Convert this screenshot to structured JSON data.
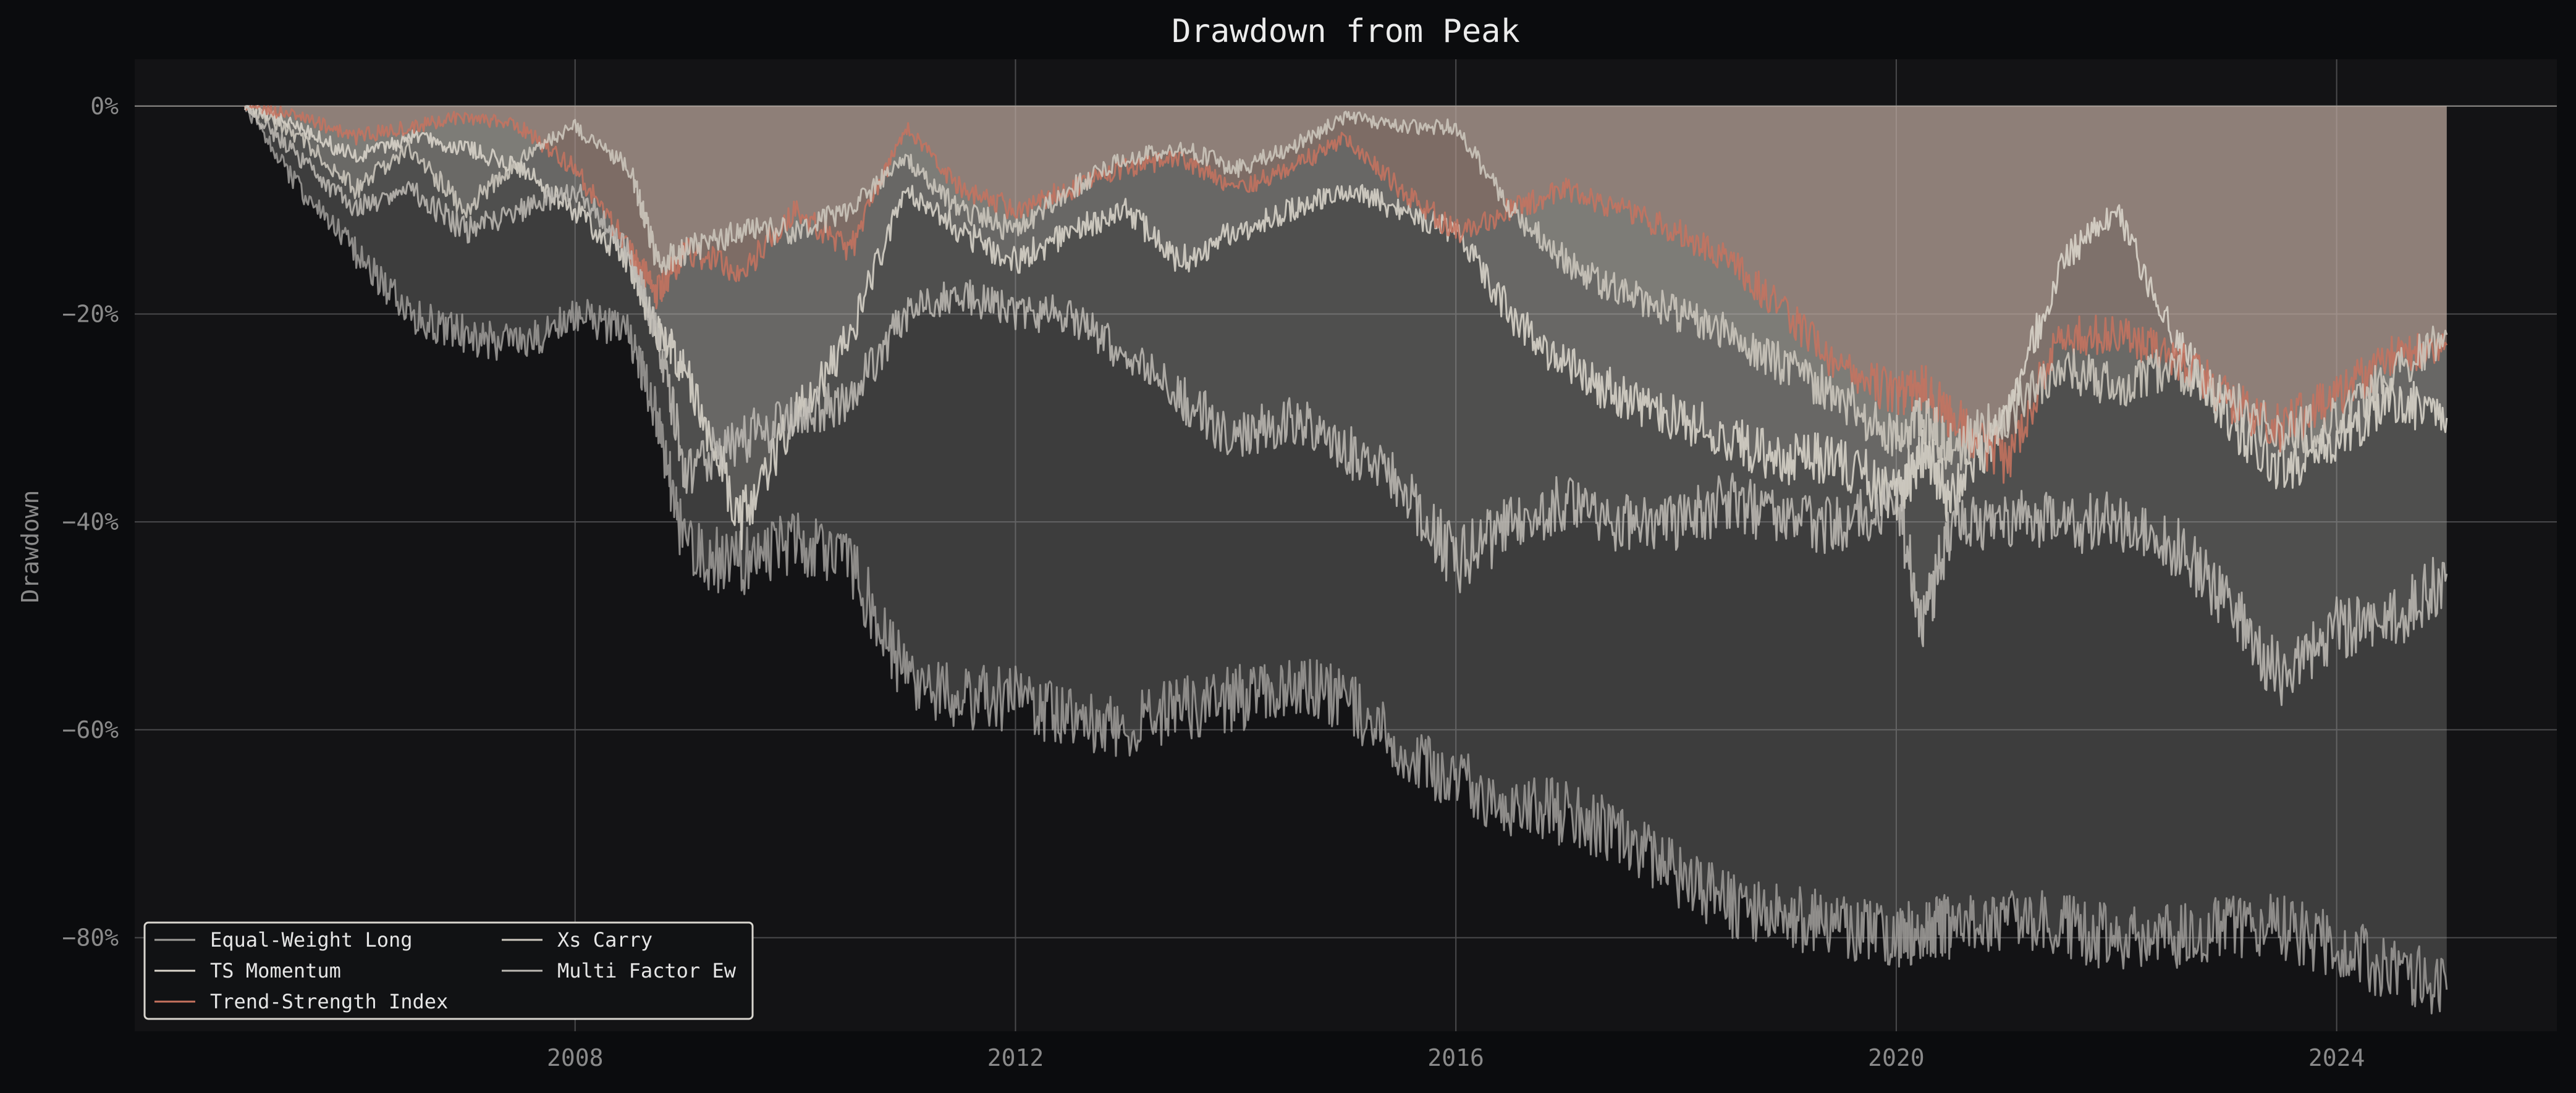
{
  "chart_data": {
    "type": "area",
    "title": "Drawdown from Peak",
    "xlabel": "",
    "ylabel": "Drawdown",
    "xlim": [
      2004.0,
      2026.0
    ],
    "ylim": [
      -89.0,
      4.5
    ],
    "x_ticks": [
      2008,
      2012,
      2016,
      2020,
      2024
    ],
    "x_tick_labels": [
      "2008",
      "2012",
      "2016",
      "2020",
      "2024"
    ],
    "y_ticks": [
      0,
      -20,
      -40,
      -60,
      -80
    ],
    "y_tick_labels": [
      "0%",
      "−20%",
      "−40%",
      "−60%",
      "−80%"
    ],
    "grid": true,
    "legend_position": "lower-left",
    "series": [
      {
        "name": "Equal-Weight Long",
        "color": "#a09e9a",
        "fill": "#a09e9a",
        "fill_opacity": 0.3,
        "x": [
          2005.0,
          2005.5,
          2006.0,
          2006.5,
          2007.0,
          2007.5,
          2008.0,
          2008.5,
          2008.75,
          2009.0,
          2009.5,
          2010.0,
          2010.5,
          2011.0,
          2011.5,
          2012.0,
          2012.5,
          2013.0,
          2013.5,
          2014.0,
          2014.5,
          2015.0,
          2015.5,
          2016.0,
          2016.5,
          2017.0,
          2017.5,
          2018.0,
          2018.5,
          2019.0,
          2019.5,
          2020.0,
          2020.25,
          2020.5,
          2021.0,
          2021.5,
          2022.0,
          2022.5,
          2023.0,
          2023.5,
          2024.0,
          2024.5,
          2025.0
        ],
        "y": [
          0,
          -8,
          -14,
          -20,
          -22,
          -23,
          -20,
          -22,
          -30,
          -43,
          -44,
          -42,
          -44,
          -55,
          -57,
          -57,
          -59,
          -60,
          -58,
          -57,
          -56,
          -57,
          -62,
          -65,
          -67,
          -68,
          -70,
          -74,
          -77,
          -78,
          -79,
          -80,
          -79,
          -79,
          -78,
          -79,
          -80,
          -80,
          -79,
          -79,
          -81,
          -83,
          -85
        ]
      },
      {
        "name": "TS Momentum",
        "color": "#ddd8ce",
        "fill": "#ddd8ce",
        "fill_opacity": 0.18,
        "x": [
          2005.0,
          2005.5,
          2006.0,
          2006.5,
          2007.0,
          2007.5,
          2008.0,
          2008.5,
          2008.75,
          2009.0,
          2009.5,
          2010.0,
          2010.5,
          2011.0,
          2011.5,
          2012.0,
          2012.5,
          2013.0,
          2013.5,
          2014.0,
          2014.5,
          2015.0,
          2015.5,
          2016.0,
          2016.5,
          2017.0,
          2017.5,
          2018.0,
          2018.5,
          2019.0,
          2019.5,
          2020.0,
          2020.25,
          2020.5,
          2021.0,
          2021.5,
          2022.0,
          2022.5,
          2023.0,
          2023.5,
          2024.0,
          2024.5,
          2025.0
        ],
        "y": [
          0,
          -2,
          -5,
          -3,
          -4,
          -6,
          -10,
          -15,
          -22,
          -25,
          -40,
          -30,
          -22,
          -8,
          -12,
          -15,
          -12,
          -10,
          -15,
          -12,
          -10,
          -8,
          -10,
          -12,
          -20,
          -25,
          -28,
          -30,
          -32,
          -34,
          -34,
          -38,
          -33,
          -38,
          -30,
          -15,
          -10,
          -22,
          -30,
          -35,
          -32,
          -28,
          -30
        ]
      },
      {
        "name": "Trend-Strength Index",
        "color": "#c7735f",
        "fill": "#c7735f",
        "fill_opacity": 0.22,
        "x": [
          2005.0,
          2005.5,
          2006.0,
          2006.5,
          2007.0,
          2007.5,
          2008.0,
          2008.5,
          2008.75,
          2009.0,
          2009.5,
          2010.0,
          2010.5,
          2011.0,
          2011.5,
          2012.0,
          2012.5,
          2013.0,
          2013.5,
          2014.0,
          2014.5,
          2015.0,
          2015.5,
          2016.0,
          2016.5,
          2017.0,
          2017.5,
          2018.0,
          2018.5,
          2019.0,
          2019.5,
          2020.0,
          2020.25,
          2020.5,
          2021.0,
          2021.5,
          2022.0,
          2022.5,
          2023.0,
          2023.5,
          2024.0,
          2024.5,
          2025.0
        ],
        "y": [
          0,
          -1,
          -3,
          -2,
          -1,
          -2,
          -6,
          -14,
          -18,
          -14,
          -16,
          -10,
          -14,
          -2,
          -8,
          -10,
          -8,
          -6,
          -5,
          -8,
          -6,
          -3,
          -8,
          -12,
          -10,
          -8,
          -10,
          -12,
          -15,
          -20,
          -25,
          -28,
          -27,
          -30,
          -34,
          -22,
          -22,
          -24,
          -28,
          -31,
          -28,
          -24,
          -23
        ]
      },
      {
        "name": "Xs Carry",
        "color": "#cfcac0",
        "fill": "#cfcac0",
        "fill_opacity": 0.22,
        "x": [
          2005.0,
          2005.5,
          2006.0,
          2006.5,
          2007.0,
          2007.5,
          2008.0,
          2008.5,
          2008.75,
          2009.0,
          2009.5,
          2010.0,
          2010.5,
          2011.0,
          2011.5,
          2012.0,
          2012.5,
          2013.0,
          2013.5,
          2014.0,
          2014.5,
          2015.0,
          2015.5,
          2016.0,
          2016.5,
          2017.0,
          2017.5,
          2018.0,
          2018.5,
          2019.0,
          2019.5,
          2020.0,
          2020.25,
          2020.5,
          2021.0,
          2021.5,
          2022.0,
          2022.5,
          2023.0,
          2023.5,
          2024.0,
          2024.5,
          2025.0
        ],
        "y": [
          0,
          -3,
          -8,
          -4,
          -10,
          -5,
          -2,
          -6,
          -15,
          -14,
          -12,
          -12,
          -10,
          -5,
          -10,
          -12,
          -8,
          -5,
          -4,
          -6,
          -4,
          -1,
          -2,
          -2,
          -10,
          -15,
          -18,
          -20,
          -22,
          -25,
          -28,
          -32,
          -30,
          -33,
          -30,
          -25,
          -27,
          -25,
          -28,
          -32,
          -30,
          -26,
          -22
        ]
      },
      {
        "name": "Multi Factor Ew",
        "color": "#bebbb5",
        "fill": "#bebbb5",
        "fill_opacity": 0.15,
        "x": [
          2005.0,
          2005.5,
          2006.0,
          2006.5,
          2007.0,
          2007.5,
          2008.0,
          2008.5,
          2008.75,
          2009.0,
          2009.5,
          2010.0,
          2010.5,
          2011.0,
          2011.5,
          2012.0,
          2012.5,
          2013.0,
          2013.5,
          2014.0,
          2014.5,
          2015.0,
          2015.5,
          2016.0,
          2016.5,
          2017.0,
          2017.5,
          2018.0,
          2018.5,
          2019.0,
          2019.5,
          2020.0,
          2020.25,
          2020.5,
          2021.0,
          2021.5,
          2022.0,
          2022.5,
          2023.0,
          2023.5,
          2024.0,
          2024.5,
          2025.0
        ],
        "y": [
          0,
          -5,
          -10,
          -8,
          -12,
          -10,
          -8,
          -14,
          -22,
          -35,
          -32,
          -30,
          -28,
          -20,
          -18,
          -20,
          -20,
          -24,
          -28,
          -32,
          -30,
          -33,
          -36,
          -44,
          -40,
          -38,
          -40,
          -40,
          -38,
          -40,
          -40,
          -38,
          -50,
          -40,
          -40,
          -40,
          -40,
          -42,
          -48,
          -55,
          -50,
          -50,
          -45
        ]
      }
    ]
  }
}
